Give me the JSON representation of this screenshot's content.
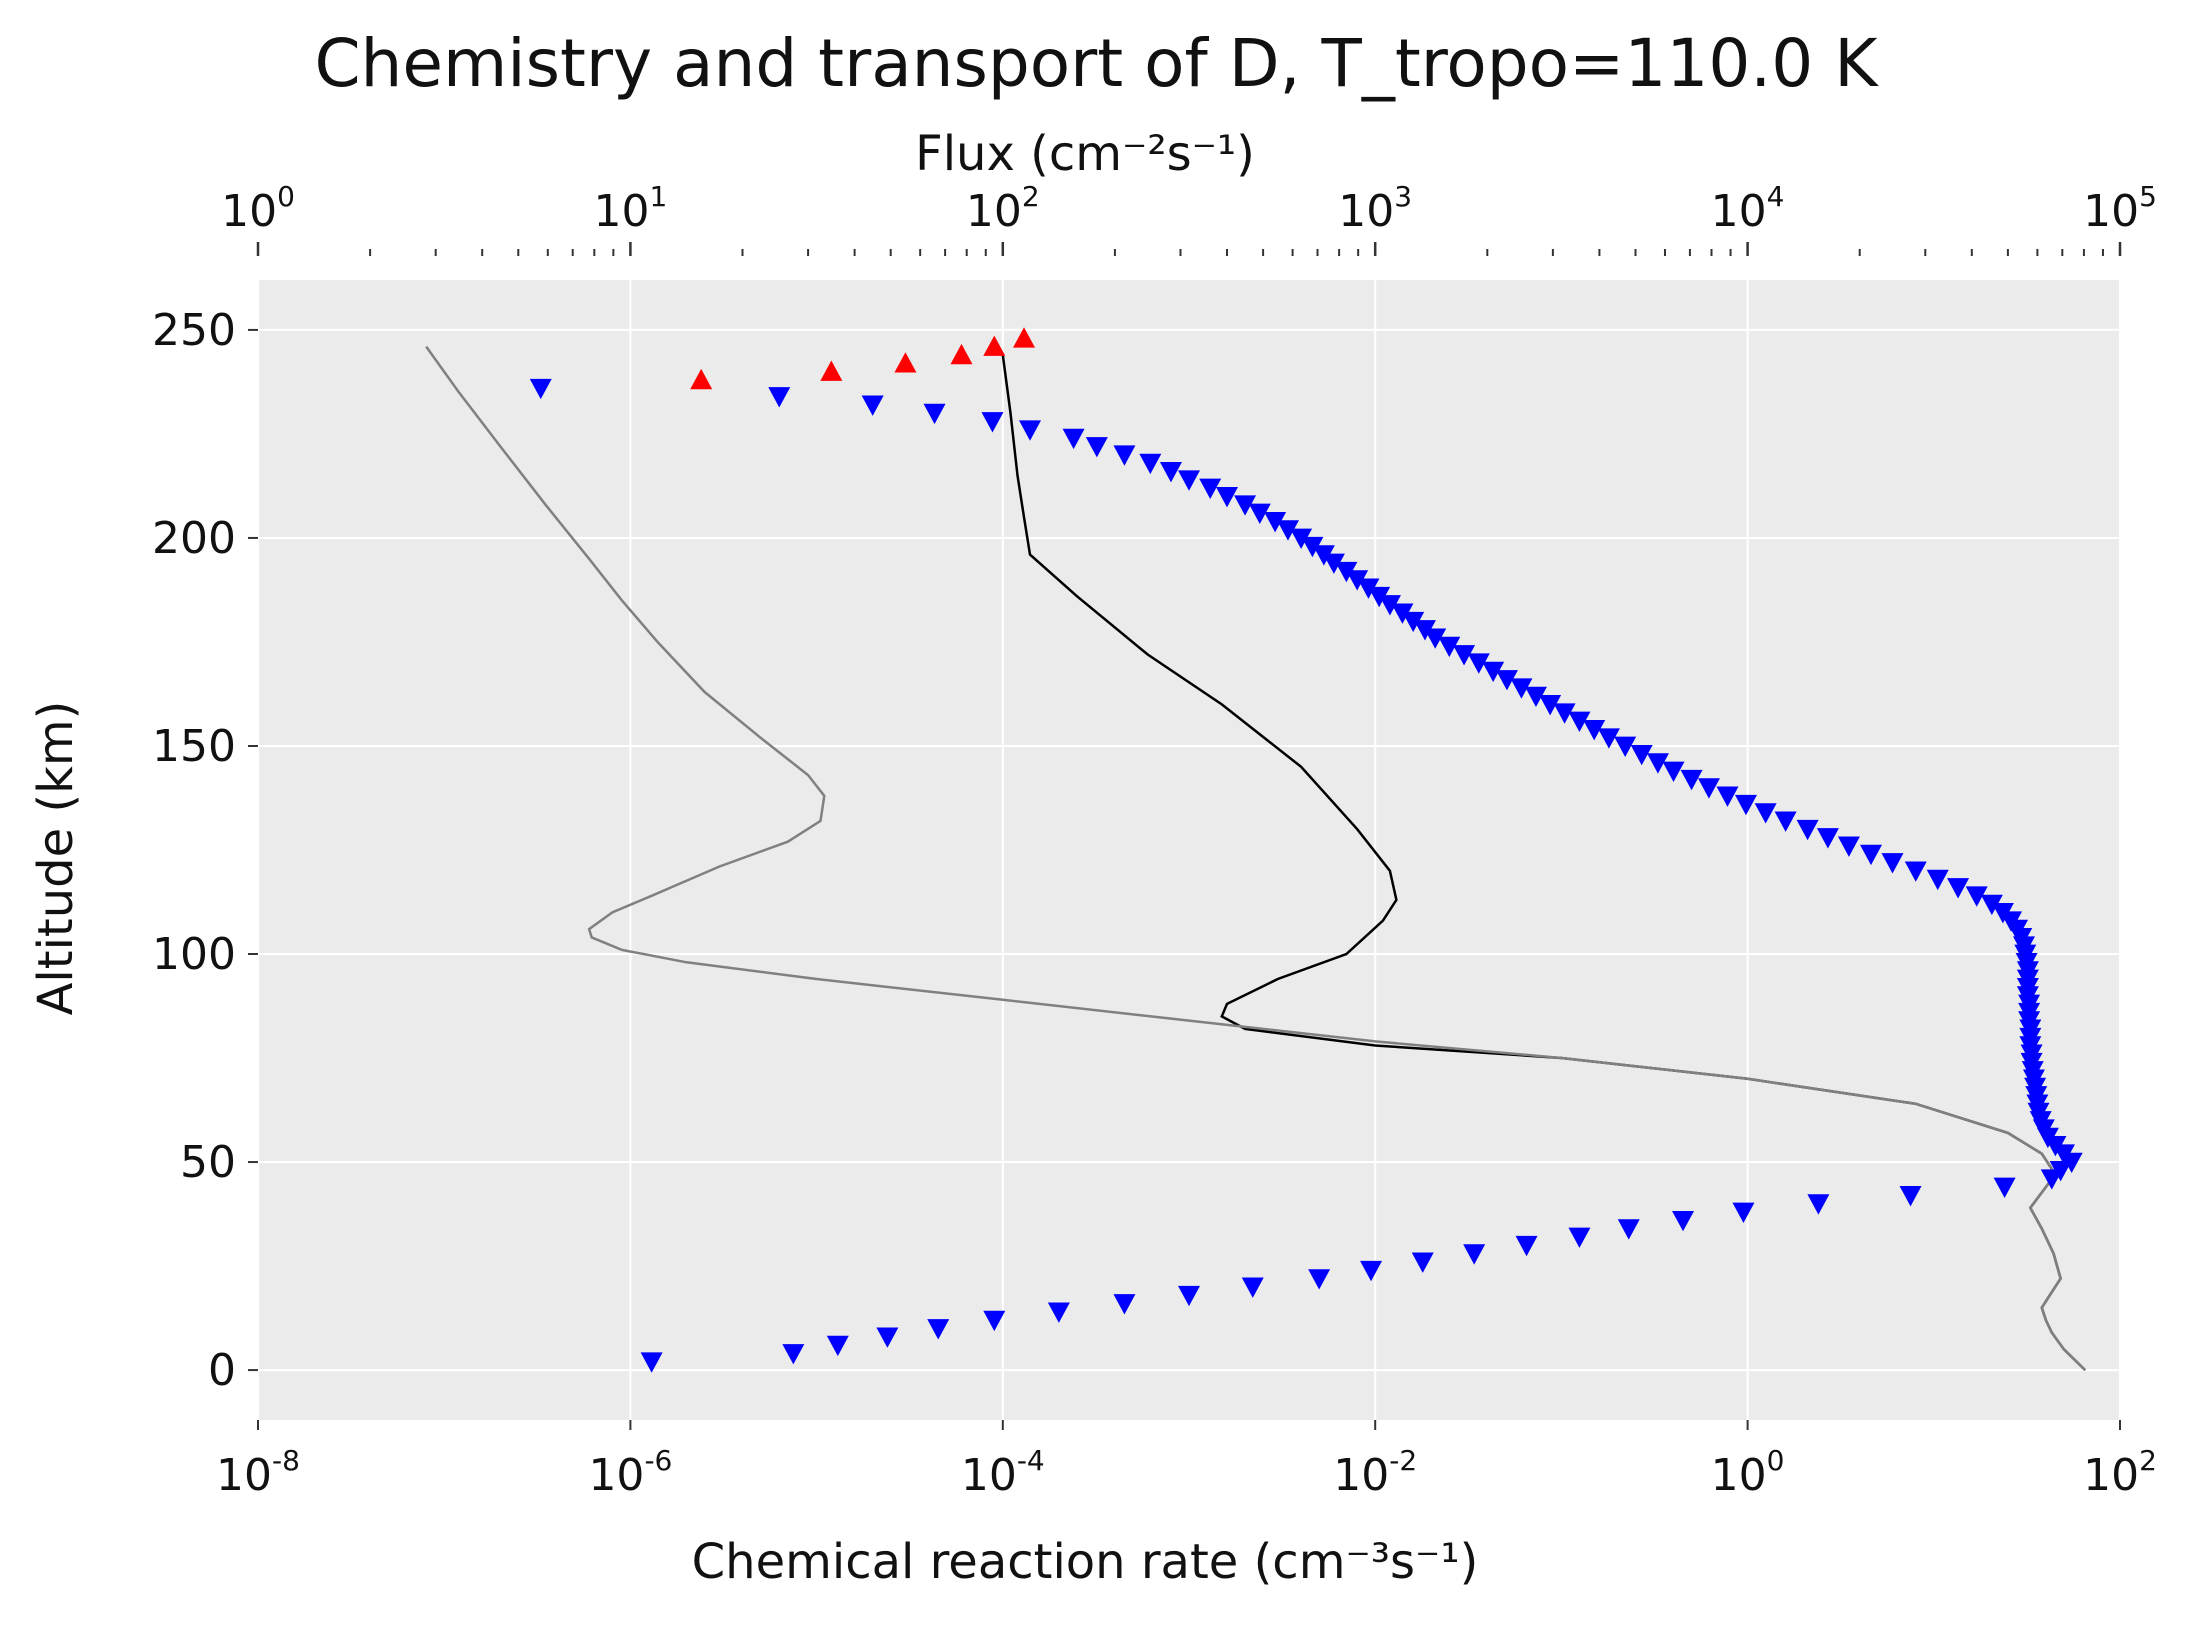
{
  "chart_data": {
    "type": "scatter",
    "title": "Chemistry and transport of D, T_tropo=110.0 K",
    "xlabel": "Chemical reaction rate (cm⁻³s⁻¹)",
    "ylabel": "Altitude (km)",
    "top_xlabel": "Flux (cm⁻²s⁻¹)",
    "xscale": "log",
    "xlim": [
      1e-08,
      100
    ],
    "ylim": [
      -12,
      262
    ],
    "top_xscale": "log",
    "top_xlim": [
      1,
      100000
    ],
    "grid": true,
    "colors": {
      "background": "#ebebeb",
      "grid": "#ffffff",
      "down_markers": "#0000ff",
      "up_markers": "#ff0000",
      "line_black": "#000000",
      "line_gray": "#808080"
    },
    "x_ticks": [
      {
        "base": "10",
        "exp": "-8",
        "value": 1e-08
      },
      {
        "base": "10",
        "exp": "-6",
        "value": 1e-06
      },
      {
        "base": "10",
        "exp": "-4",
        "value": 0.0001
      },
      {
        "base": "10",
        "exp": "-2",
        "value": 0.01
      },
      {
        "base": "10",
        "exp": "0",
        "value": 1
      },
      {
        "base": "10",
        "exp": "2",
        "value": 100
      }
    ],
    "y_ticks": [
      "0",
      "50",
      "100",
      "150",
      "200",
      "250"
    ],
    "top_ticks": [
      {
        "base": "10",
        "exp": "0",
        "value": 1
      },
      {
        "base": "10",
        "exp": "1",
        "value": 10
      },
      {
        "base": "10",
        "exp": "2",
        "value": 100
      },
      {
        "base": "10",
        "exp": "3",
        "value": 1000
      },
      {
        "base": "10",
        "exp": "4",
        "value": 10000
      },
      {
        "base": "10",
        "exp": "5",
        "value": 100000
      }
    ],
    "series": [
      {
        "marker": "triangle-down",
        "color": "#0000ff",
        "points": [
          [
            1.3e-06,
            2
          ],
          [
            7.5e-06,
            4
          ],
          [
            1.3e-05,
            6
          ],
          [
            2.4e-05,
            8
          ],
          [
            4.5e-05,
            10
          ],
          [
            9e-05,
            12
          ],
          [
            0.0002,
            14
          ],
          [
            0.00045,
            16
          ],
          [
            0.001,
            18
          ],
          [
            0.0022,
            20
          ],
          [
            0.005,
            22
          ],
          [
            0.0095,
            24
          ],
          [
            0.018,
            26
          ],
          [
            0.034,
            28
          ],
          [
            0.065,
            30
          ],
          [
            0.125,
            32
          ],
          [
            0.23,
            34
          ],
          [
            0.45,
            36
          ],
          [
            0.95,
            38
          ],
          [
            2.4,
            40
          ],
          [
            7.5,
            42
          ],
          [
            24,
            44
          ],
          [
            43,
            46
          ],
          [
            48,
            48
          ],
          [
            55,
            50
          ],
          [
            3.3e-07,
            236
          ],
          [
            6.3e-06,
            234
          ],
          [
            2e-05,
            232
          ],
          [
            4.3e-05,
            230
          ],
          [
            8.8e-05,
            228
          ],
          [
            0.00014,
            226
          ],
          [
            0.00024,
            224
          ],
          [
            0.00032,
            222
          ],
          [
            0.00045,
            220
          ],
          [
            0.00062,
            218
          ],
          [
            0.0008,
            216
          ],
          [
            0.001,
            214
          ],
          [
            0.0013,
            212
          ],
          [
            0.0016,
            210
          ],
          [
            0.002,
            208
          ],
          [
            0.0024,
            206
          ],
          [
            0.0029,
            204
          ],
          [
            0.0034,
            202
          ],
          [
            0.004,
            200
          ],
          [
            0.0046,
            198
          ],
          [
            0.0053,
            196
          ],
          [
            0.006,
            194
          ],
          [
            0.007,
            192
          ],
          [
            0.008,
            190
          ],
          [
            0.0092,
            188
          ],
          [
            0.0105,
            186
          ],
          [
            0.012,
            184
          ],
          [
            0.014,
            182
          ],
          [
            0.016,
            180
          ],
          [
            0.0185,
            178
          ],
          [
            0.021,
            176
          ],
          [
            0.025,
            174
          ],
          [
            0.03,
            172
          ],
          [
            0.036,
            170
          ],
          [
            0.043,
            168
          ],
          [
            0.051,
            166
          ],
          [
            0.061,
            164
          ],
          [
            0.073,
            162
          ],
          [
            0.087,
            160
          ],
          [
            0.104,
            158
          ],
          [
            0.125,
            156
          ],
          [
            0.15,
            154
          ],
          [
            0.18,
            152
          ],
          [
            0.22,
            150
          ],
          [
            0.27,
            148
          ],
          [
            0.33,
            146
          ],
          [
            0.4,
            144
          ],
          [
            0.5,
            142
          ],
          [
            0.62,
            140
          ],
          [
            0.78,
            138
          ],
          [
            0.98,
            136
          ],
          [
            1.25,
            134
          ],
          [
            1.6,
            132
          ],
          [
            2.1,
            130
          ],
          [
            2.7,
            128
          ],
          [
            3.5,
            126
          ],
          [
            4.6,
            124
          ],
          [
            6,
            122
          ],
          [
            8,
            120
          ],
          [
            10.5,
            118
          ],
          [
            13.5,
            116
          ],
          [
            17,
            114
          ],
          [
            20.5,
            112
          ],
          [
            23.5,
            110
          ],
          [
            26,
            108
          ],
          [
            28,
            106
          ],
          [
            29.5,
            104
          ],
          [
            30.5,
            102
          ],
          [
            31,
            100
          ],
          [
            31.5,
            98
          ],
          [
            32,
            96
          ],
          [
            32,
            94
          ],
          [
            32,
            92
          ],
          [
            32,
            90
          ],
          [
            32.5,
            88
          ],
          [
            32.5,
            86
          ],
          [
            32.5,
            84
          ],
          [
            33,
            82
          ],
          [
            33,
            80
          ],
          [
            33,
            78
          ],
          [
            33.5,
            76
          ],
          [
            33.5,
            74
          ],
          [
            34,
            72
          ],
          [
            34.5,
            70
          ],
          [
            35,
            68
          ],
          [
            35.5,
            66
          ],
          [
            36,
            64
          ],
          [
            36.5,
            62
          ],
          [
            37.5,
            60
          ],
          [
            39,
            58
          ],
          [
            41,
            56
          ],
          [
            45,
            54
          ],
          [
            50,
            52
          ]
        ]
      },
      {
        "marker": "triangle-up",
        "color": "#ff0000",
        "points": [
          [
            2.4e-06,
            238
          ],
          [
            1.2e-05,
            240
          ],
          [
            3e-05,
            242
          ],
          [
            6e-05,
            244
          ],
          [
            9e-05,
            246
          ],
          [
            0.00013,
            248
          ]
        ]
      },
      {
        "type": "line",
        "color": "#000000",
        "points": [
          [
            0.0001,
            244
          ],
          [
            0.00011,
            230
          ],
          [
            0.00012,
            215
          ],
          [
            0.00013,
            205
          ],
          [
            0.00014,
            196
          ],
          [
            0.00025,
            186
          ],
          [
            0.0006,
            172
          ],
          [
            0.0015,
            160
          ],
          [
            0.004,
            145
          ],
          [
            0.008,
            130
          ],
          [
            0.012,
            120
          ],
          [
            0.013,
            113
          ],
          [
            0.011,
            108
          ],
          [
            0.007,
            100
          ],
          [
            0.003,
            94
          ],
          [
            0.0016,
            88
          ],
          [
            0.0015,
            85
          ],
          [
            0.002,
            82
          ],
          [
            0.01,
            78
          ],
          [
            0.1,
            75
          ],
          [
            1,
            70
          ],
          [
            8,
            64
          ],
          [
            25,
            57
          ],
          [
            38,
            52
          ],
          [
            45,
            47
          ],
          [
            40,
            44
          ],
          [
            33,
            39
          ],
          [
            38,
            34
          ],
          [
            44,
            28
          ],
          [
            48,
            22
          ],
          [
            42,
            18
          ],
          [
            38,
            15
          ],
          [
            40,
            12
          ],
          [
            43,
            9
          ],
          [
            50,
            5
          ],
          [
            65,
            0
          ]
        ]
      },
      {
        "type": "line",
        "color": "#808080",
        "points": [
          [
            8e-08,
            246
          ],
          [
            1.2e-07,
            235
          ],
          [
            2e-07,
            222
          ],
          [
            3.5e-07,
            208
          ],
          [
            6e-07,
            195
          ],
          [
            9e-07,
            185
          ],
          [
            1.4e-06,
            175
          ],
          [
            2.5e-06,
            163
          ],
          [
            5e-06,
            152
          ],
          [
            9e-06,
            143
          ],
          [
            1.1e-05,
            138
          ],
          [
            1.05e-05,
            132
          ],
          [
            7e-06,
            127
          ],
          [
            3e-06,
            121
          ],
          [
            1.3e-06,
            114
          ],
          [
            8e-07,
            110
          ],
          [
            6e-07,
            106
          ],
          [
            6.2e-07,
            104
          ],
          [
            9e-07,
            101
          ],
          [
            2e-06,
            98
          ],
          [
            1e-05,
            94
          ],
          [
            0.0001,
            89
          ],
          [
            0.001,
            84
          ],
          [
            0.01,
            79
          ],
          [
            0.1,
            75
          ],
          [
            1,
            70
          ],
          [
            8,
            64
          ],
          [
            25,
            57
          ],
          [
            38,
            52
          ],
          [
            45,
            47
          ],
          [
            40,
            44
          ],
          [
            33,
            39
          ],
          [
            38,
            34
          ],
          [
            44,
            28
          ],
          [
            48,
            22
          ],
          [
            42,
            18
          ],
          [
            38,
            15
          ],
          [
            40,
            12
          ],
          [
            43,
            9
          ],
          [
            50,
            5
          ],
          [
            65,
            0
          ]
        ]
      }
    ]
  }
}
